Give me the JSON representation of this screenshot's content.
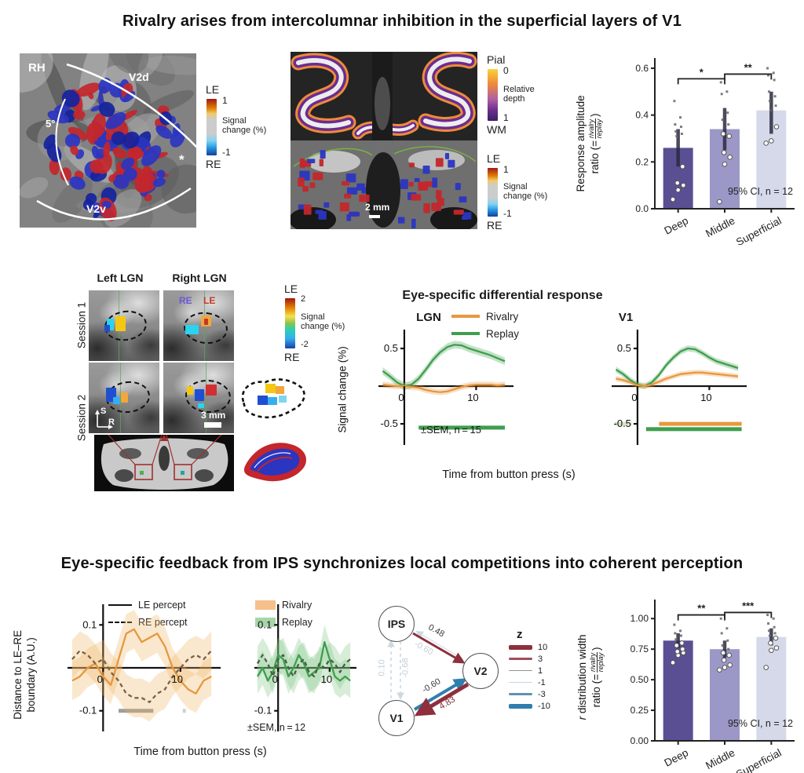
{
  "titles": {
    "top": "Rivalry arises from intercolumnar inhibition in the superficial layers of V1",
    "bottom": "Eye-specific feedback from IPS synchronizes local competitions into coherent perception"
  },
  "colors": {
    "rivalry": "#e8973f",
    "replay": "#3f9e4d",
    "deep": "#5b4f93",
    "middle": "#9b98c7",
    "superficial": "#d6d9ea",
    "positive_z": "#8e2f3c",
    "negative_z": "#2e7fb0"
  },
  "flatmap": {
    "labels": {
      "hemisphere": "RH",
      "v2d": "V2d",
      "v2v": "V2v",
      "eccentricity": "5°",
      "fovea_star": "*"
    },
    "colorbar": {
      "top": "LE",
      "max": "1",
      "label": "Signal change (%)",
      "min": "-1",
      "bottom": "RE"
    }
  },
  "slices": {
    "scale": "2 mm",
    "depth_colorbar": {
      "top": "Pial",
      "max": "0",
      "label": "Relative depth",
      "min": "1",
      "bottom": "WM"
    },
    "signal_colorbar": {
      "top": "LE",
      "max": "1",
      "label": "Signal change (%)",
      "min": "-1",
      "bottom": "RE"
    }
  },
  "lgn": {
    "col_left": "Left LGN",
    "col_right": "Right LGN",
    "row1": "Session 1",
    "row2": "Session 2",
    "re_label": "RE",
    "le_label": "LE",
    "scale": "3 mm",
    "axis_s": "S",
    "axis_r": "R",
    "colorbar": {
      "top": "LE",
      "max": "2",
      "label": "Signal change (%)",
      "min": "-2",
      "bottom": "RE"
    }
  },
  "diff_response": {
    "title": "Eye-specific differential response",
    "legend": [
      {
        "label": "Rivalry"
      },
      {
        "label": "Replay"
      }
    ],
    "subplot_lgn": "LGN",
    "subplot_v1": "V1",
    "ylabel": "Signal change (%)",
    "sem_note": "±SEM, n = 15",
    "xlabel": "Time from button press (s)"
  },
  "boundary": {
    "ylabel_line1": "Distance to LE–RE",
    "ylabel_line2": "boundary (A.U.)",
    "line_legend": [
      {
        "label": "LE percept"
      },
      {
        "label": "RE percept"
      }
    ],
    "fill_legend": [
      {
        "label": "Rivalry"
      },
      {
        "label": "Replay"
      }
    ],
    "sem_note": "±SEM, n = 12",
    "xlabel": "Time from button press (s)"
  },
  "network": {
    "nodes": [
      "IPS",
      "V2",
      "V1"
    ],
    "edges": [
      {
        "from": "IPS",
        "to": "V2",
        "label": "0.48"
      },
      {
        "from": "V2",
        "to": "IPS",
        "label": "-0.60"
      },
      {
        "from": "V1",
        "to": "IPS",
        "label": "0.10"
      },
      {
        "from": "IPS",
        "to": "V1",
        "label": "-0.68"
      },
      {
        "from": "V1",
        "to": "V2",
        "label": "-0.60"
      },
      {
        "from": "V2",
        "to": "V1",
        "label": "4.83"
      }
    ],
    "z_legend": {
      "title": "z",
      "entries": [
        "10",
        "3",
        "1",
        "-1",
        "-3",
        "-10"
      ]
    }
  },
  "ylabels": {
    "resp": {
      "line1": "Response amplitude",
      "pre": "ratio (=",
      "frac_top": "rivalry",
      "frac_bottom": "replay",
      "post": ")"
    },
    "rwidth": {
      "r": "r",
      "line1_rest": " distribution width",
      "pre": "ratio (=",
      "frac_top": "rivalry",
      "frac_bottom": "replay",
      "post": ")"
    }
  },
  "chart_data": [
    {
      "id": "response-amplitude",
      "type": "bar",
      "title": "Response amplitude ratio (= rivalry/replay) by cortical depth",
      "categories": [
        "Deep",
        "Middle",
        "Superficial"
      ],
      "values": [
        0.26,
        0.34,
        0.42
      ],
      "ci_low": [
        0.18,
        0.25,
        0.32
      ],
      "ci_high": [
        0.34,
        0.43,
        0.5
      ],
      "points": [
        [
          0.04,
          0.08,
          0.1,
          0.11,
          0.18,
          0.31,
          0.32,
          0.33,
          0.35,
          0.36,
          0.39,
          0.46
        ],
        [
          0.03,
          0.19,
          0.22,
          0.24,
          0.31,
          0.32,
          0.36,
          0.38,
          0.41,
          0.49,
          0.5,
          0.54
        ],
        [
          0.28,
          0.29,
          0.35,
          0.42,
          0.44,
          0.46,
          0.48,
          0.5,
          0.55,
          0.57,
          0.58,
          0.6
        ]
      ],
      "bar_colors": [
        "#5b4f93",
        "#9b98c7",
        "#d6d9ea"
      ],
      "ylim": [
        0,
        0.63
      ],
      "yticks": [
        0,
        0.2,
        0.4,
        0.6
      ],
      "ytick_labels": [
        "0.0",
        "0.2",
        "0.4",
        "0.6"
      ],
      "significance": [
        {
          "a": 0,
          "b": 1,
          "label": "*",
          "y": 0.555
        },
        {
          "a": 1,
          "b": 2,
          "label": "**",
          "y": 0.575
        }
      ],
      "annotation": "95% CI, n = 12"
    },
    {
      "id": "lgn-line",
      "type": "line",
      "title": "LGN eye-specific differential response",
      "x": [
        -3,
        -2,
        -1,
        0,
        1,
        2,
        3,
        4,
        5,
        6,
        7,
        8,
        9,
        10,
        11,
        12,
        13,
        14
      ],
      "series": [
        {
          "name": "Replay",
          "color": "#3f9e4d",
          "band": 0.05,
          "values": [
            0.2,
            0.13,
            0.05,
            0.0,
            0.02,
            0.1,
            0.22,
            0.35,
            0.45,
            0.52,
            0.55,
            0.54,
            0.5,
            0.47,
            0.44,
            0.41,
            0.37,
            0.33
          ]
        },
        {
          "name": "Rivalry",
          "color": "#e8973f",
          "band": 0.04,
          "values": [
            0.02,
            0.01,
            0.0,
            0.0,
            -0.01,
            -0.02,
            -0.05,
            -0.07,
            -0.08,
            -0.07,
            -0.04,
            -0.01,
            0.01,
            0.02,
            0.02,
            0.02,
            0.01,
            0.02
          ]
        }
      ],
      "xlim": [
        -3.6,
        15.2
      ],
      "ylim": [
        -0.78,
        0.75
      ],
      "yticks": [
        0.5,
        -0.5
      ],
      "ytick_labels": [
        "0.5",
        "-0.5"
      ],
      "xticks": [
        0,
        10
      ],
      "xtick_labels": [
        "0",
        "10"
      ],
      "sig_bars": [
        {
          "x0": 2,
          "x1": 14,
          "y": -0.55,
          "color": "#3f9e4d"
        }
      ]
    },
    {
      "id": "v1-line",
      "type": "line",
      "title": "V1 eye-specific differential response",
      "x": [
        -3,
        -2,
        -1,
        0,
        1,
        2,
        3,
        4,
        5,
        6,
        7,
        8,
        9,
        10,
        11,
        12,
        13,
        14
      ],
      "series": [
        {
          "name": "Replay",
          "color": "#3f9e4d",
          "band": 0.04,
          "values": [
            0.22,
            0.16,
            0.08,
            0.02,
            0.0,
            0.05,
            0.15,
            0.28,
            0.38,
            0.46,
            0.5,
            0.49,
            0.44,
            0.38,
            0.33,
            0.3,
            0.27,
            0.24
          ]
        },
        {
          "name": "Rivalry",
          "color": "#e8973f",
          "band": 0.035,
          "values": [
            0.1,
            0.08,
            0.05,
            0.01,
            0.0,
            0.02,
            0.06,
            0.1,
            0.13,
            0.16,
            0.17,
            0.18,
            0.18,
            0.17,
            0.16,
            0.15,
            0.14,
            0.13
          ]
        }
      ],
      "xlim": [
        -3.6,
        15.2
      ],
      "ylim": [
        -0.78,
        0.75
      ],
      "yticks": [
        0.5,
        -0.5
      ],
      "ytick_labels": [
        "0.5",
        "-0.5"
      ],
      "xticks": [
        0,
        10
      ],
      "xtick_labels": [
        "0",
        "10"
      ],
      "sig_bars": [
        {
          "x0": -3.2,
          "x1": -0.8,
          "y": -0.5,
          "color": "#d8e6c8"
        },
        {
          "x0": 1.2,
          "x1": 14.5,
          "y": -0.57,
          "color": "#3f9e4d"
        },
        {
          "x0": 3.0,
          "x1": 14.5,
          "y": -0.5,
          "color": "#e8973f"
        }
      ]
    },
    {
      "id": "boundary-rivalry",
      "type": "line",
      "title": "Distance to LE-RE boundary, Rivalry",
      "x": [
        -4,
        -3,
        -2,
        -1,
        0,
        1,
        2,
        3,
        4,
        5,
        6,
        7,
        8,
        9,
        10,
        11,
        12,
        13,
        14
      ],
      "series": [
        {
          "name": "LE percept",
          "color": "#e8973f",
          "band": 0.045,
          "band_color": "#f0b25e",
          "values": [
            -0.03,
            -0.02,
            0.0,
            0.01,
            -0.02,
            -0.04,
            0.02,
            0.08,
            0.09,
            0.06,
            0.07,
            0.08,
            0.05,
            0.0,
            -0.03,
            -0.05,
            -0.06,
            -0.03,
            -0.02
          ]
        },
        {
          "name": "RE percept",
          "color": "#7a6248",
          "dash": "5,4",
          "band": 0.045,
          "band_color": "#f0b25e",
          "values": [
            0.02,
            0.04,
            0.03,
            0.01,
            0.02,
            -0.01,
            -0.03,
            -0.06,
            -0.07,
            -0.07,
            -0.08,
            -0.06,
            -0.05,
            -0.02,
            0.0,
            0.02,
            0.03,
            0.02,
            0.04
          ]
        }
      ],
      "xlim": [
        -4.6,
        15.2
      ],
      "ylim": [
        -0.148,
        0.148
      ],
      "yticks": [
        0.1,
        -0.1
      ],
      "ytick_labels": [
        "0.1",
        "-0.1"
      ],
      "xticks": [
        0,
        10
      ],
      "xtick_labels": [
        "0",
        "10"
      ],
      "sig_bars": [
        {
          "x0": 2,
          "x1": 6.5,
          "y": -0.1,
          "color": "#9e9e9e"
        },
        {
          "x0": 10.3,
          "x1": 10.7,
          "y": -0.1,
          "color": "#cfcfcf"
        }
      ]
    },
    {
      "id": "boundary-replay",
      "type": "line",
      "title": "Distance to LE-RE boundary, Replay",
      "x": [
        -4,
        -3,
        -2,
        -1,
        0,
        1,
        2,
        3,
        4,
        5,
        6,
        7,
        8,
        9,
        10,
        11,
        12,
        13,
        14
      ],
      "series": [
        {
          "name": "LE percept",
          "color": "#3f9e4d",
          "band": 0.04,
          "band_color": "#7cc47f",
          "values": [
            -0.02,
            0.0,
            -0.03,
            -0.01,
            0.03,
            0.02,
            -0.02,
            0.0,
            0.03,
            0.01,
            -0.02,
            -0.01,
            0.0,
            0.06,
            0.02,
            -0.02,
            -0.03,
            -0.02,
            -0.03
          ]
        },
        {
          "name": "RE percept",
          "color": "#4a5d4a",
          "dash": "5,4",
          "band": 0.04,
          "band_color": "#7cc47f",
          "values": [
            0.01,
            0.03,
            0.01,
            -0.02,
            0.02,
            0.03,
            0.0,
            -0.02,
            0.01,
            0.02,
            -0.01,
            -0.02,
            0.01,
            0.0,
            0.02,
            0.01,
            -0.01,
            0.01,
            0.02
          ]
        }
      ],
      "xlim": [
        -4.6,
        15.2
      ],
      "ylim": [
        -0.148,
        0.148
      ],
      "yticks": [
        0.1,
        -0.1
      ],
      "ytick_labels": [
        "0.1",
        "-0.1"
      ],
      "xticks": [
        0,
        10
      ],
      "xtick_labels": [
        "0",
        "10"
      ],
      "sig_bars": []
    },
    {
      "id": "r-width",
      "type": "bar",
      "title": "r distribution width ratio (= rivalry/replay) by cortical depth",
      "categories": [
        "Deep",
        "Middle",
        "Superficial"
      ],
      "values": [
        0.82,
        0.75,
        0.85
      ],
      "ci_low": [
        0.76,
        0.68,
        0.78
      ],
      "ci_high": [
        0.88,
        0.82,
        0.92
      ],
      "points": [
        [
          0.64,
          0.7,
          0.72,
          0.73,
          0.75,
          0.78,
          0.8,
          0.83,
          0.86,
          0.88,
          0.9,
          0.95
        ],
        [
          0.58,
          0.6,
          0.62,
          0.66,
          0.7,
          0.72,
          0.75,
          0.78,
          0.82,
          0.88,
          0.92,
          1.0
        ],
        [
          0.6,
          0.74,
          0.76,
          0.8,
          0.84,
          0.86,
          0.88,
          0.9,
          0.93,
          0.96,
          1.0,
          1.03
        ]
      ],
      "bar_colors": [
        "#5b4f93",
        "#9b98c7",
        "#d6d9ea"
      ],
      "ylim": [
        0,
        1.13
      ],
      "yticks": [
        0,
        0.25,
        0.5,
        0.75,
        1.0
      ],
      "ytick_labels": [
        "0.00",
        "0.25",
        "0.50",
        "0.75",
        "1.00"
      ],
      "significance": [
        {
          "a": 0,
          "b": 1,
          "label": "**",
          "y": 1.03
        },
        {
          "a": 1,
          "b": 2,
          "label": "***",
          "y": 1.05
        }
      ],
      "annotation": "95% CI, n = 12"
    }
  ]
}
